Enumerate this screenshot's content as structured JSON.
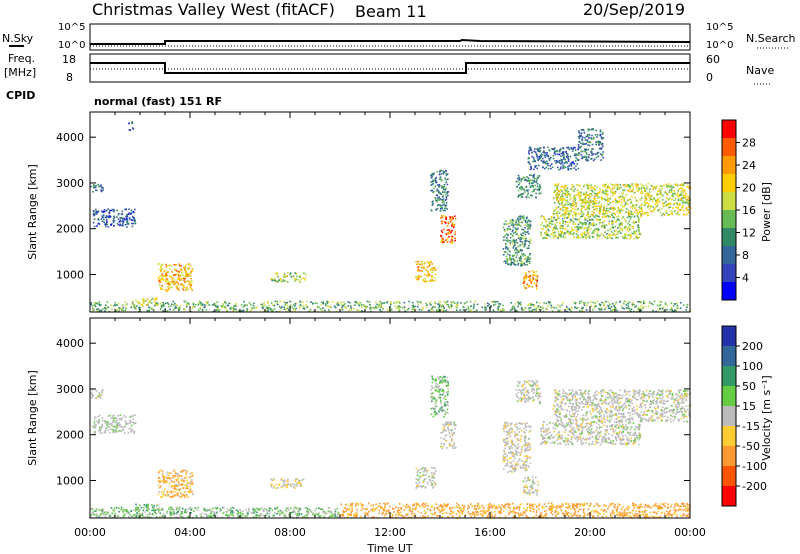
{
  "header": {
    "station": "Christmas Valley West (fitACF)",
    "beam": "Beam 11",
    "date": "20/Sep/2019"
  },
  "status_panels": {
    "nsky_label": "N.Sky",
    "nsearch_label": "N.Search",
    "noise_ticks_left": [
      "10^5",
      "10^0"
    ],
    "noise_ticks_right": [
      "10^5",
      "10^0"
    ],
    "freq_label_1": "Freq.",
    "freq_label_2": "[MHz]",
    "freq_ticks": [
      "18",
      "8"
    ],
    "nave_label": "Nave",
    "nave_ticks": [
      "60",
      "0"
    ],
    "cpid_label": "CPID",
    "cpid_text": "normal (fast) 151 RF"
  },
  "chart_data": [
    {
      "type": "heatmap",
      "quantity": "power",
      "ylabel": "Slant Range [km]",
      "colorbar_label": "Power [dB]",
      "colorbar_ticks": [
        "28",
        "24",
        "20",
        "16",
        "12",
        "8",
        "4"
      ],
      "colorbar_colors": [
        "#ff0000",
        "#ff5a00",
        "#ff9a00",
        "#ffcc00",
        "#ccdd44",
        "#66bb55",
        "#338866",
        "#336699",
        "#3344bb",
        "#0000ff"
      ],
      "y_ticks": [
        1000,
        2000,
        3000,
        4000
      ],
      "ylim": [
        180,
        4550
      ],
      "x_ticks": [
        "00:00",
        "04:00",
        "08:00",
        "12:00",
        "16:00",
        "20:00",
        "00:00"
      ],
      "xlim_hours": [
        0,
        24
      ],
      "regions": [
        {
          "t0": 0.0,
          "t1": 0.5,
          "r0": 2800,
          "r1": 3000,
          "power": 9
        },
        {
          "t0": 0.1,
          "t1": 1.8,
          "r0": 2050,
          "r1": 2450,
          "power": 7
        },
        {
          "t0": 1.5,
          "t1": 1.7,
          "r0": 4150,
          "r1": 4350,
          "power": 6
        },
        {
          "t0": 1.8,
          "t1": 2.7,
          "r0": 350,
          "r1": 500,
          "power": 18
        },
        {
          "t0": 2.7,
          "t1": 4.1,
          "r0": 650,
          "r1": 1250,
          "power": 22
        },
        {
          "t0": 7.2,
          "t1": 8.6,
          "r0": 850,
          "r1": 1050,
          "power": 16
        },
        {
          "t0": 13.0,
          "t1": 13.8,
          "r0": 850,
          "r1": 1300,
          "power": 22
        },
        {
          "t0": 13.6,
          "t1": 14.3,
          "r0": 2400,
          "r1": 3300,
          "power": 10
        },
        {
          "t0": 14.0,
          "t1": 14.6,
          "r0": 1700,
          "r1": 2300,
          "power": 26
        },
        {
          "t0": 16.5,
          "t1": 17.6,
          "r0": 1200,
          "r1": 2300,
          "power": 12
        },
        {
          "t0": 17.3,
          "t1": 17.9,
          "r0": 700,
          "r1": 1100,
          "power": 24
        },
        {
          "t0": 17.0,
          "t1": 18.0,
          "r0": 2700,
          "r1": 3200,
          "power": 11
        },
        {
          "t0": 17.5,
          "t1": 19.5,
          "r0": 3300,
          "r1": 3800,
          "power": 8
        },
        {
          "t0": 18.5,
          "t1": 24.0,
          "r0": 2300,
          "r1": 3000,
          "power": 18
        },
        {
          "t0": 18.0,
          "t1": 22.0,
          "r0": 1800,
          "r1": 2300,
          "power": 16
        },
        {
          "t0": 19.5,
          "t1": 20.5,
          "r0": 3500,
          "r1": 4200,
          "power": 9
        },
        {
          "t0": 0.0,
          "t1": 24.0,
          "r0": 200,
          "r1": 430,
          "power": 14
        }
      ]
    },
    {
      "type": "heatmap",
      "quantity": "velocity",
      "ylabel": "Slant Range [km]",
      "xlabel": "Time UT",
      "colorbar_label": "Velocity [m s⁻¹]",
      "colorbar_ticks": [
        "200",
        "100",
        "50",
        "15",
        "-15",
        "-50",
        "-100",
        "-200"
      ],
      "colorbar_colors": [
        "#2233aa",
        "#336699",
        "#339966",
        "#66cc44",
        "#bbbbbb",
        "#ffcc33",
        "#ff9933",
        "#ff5500",
        "#ff0000"
      ],
      "y_ticks": [
        1000,
        2000,
        3000,
        4000
      ],
      "ylim": [
        180,
        4550
      ],
      "x_ticks": [
        "00:00",
        "04:00",
        "08:00",
        "12:00",
        "16:00",
        "20:00",
        "00:00"
      ],
      "xlim_hours": [
        0,
        24
      ],
      "regions": [
        {
          "t0": 0.0,
          "t1": 0.5,
          "r0": 2800,
          "r1": 3000,
          "vel": 0
        },
        {
          "t0": 0.1,
          "t1": 1.8,
          "r0": 2050,
          "r1": 2450,
          "vel": 5
        },
        {
          "t0": 1.8,
          "t1": 2.7,
          "r0": 350,
          "r1": 500,
          "vel": 30
        },
        {
          "t0": 2.7,
          "t1": 4.1,
          "r0": 650,
          "r1": 1250,
          "vel": -30
        },
        {
          "t0": 7.2,
          "t1": 8.6,
          "r0": 850,
          "r1": 1050,
          "vel": -10
        },
        {
          "t0": 13.0,
          "t1": 13.8,
          "r0": 850,
          "r1": 1300,
          "vel": 0
        },
        {
          "t0": 13.6,
          "t1": 14.3,
          "r0": 2400,
          "r1": 3300,
          "vel": 20
        },
        {
          "t0": 14.0,
          "t1": 14.6,
          "r0": 1700,
          "r1": 2300,
          "vel": 0
        },
        {
          "t0": 16.5,
          "t1": 17.6,
          "r0": 1200,
          "r1": 2300,
          "vel": -5
        },
        {
          "t0": 17.3,
          "t1": 17.9,
          "r0": 700,
          "r1": 1100,
          "vel": 0
        },
        {
          "t0": 17.0,
          "t1": 18.0,
          "r0": 2700,
          "r1": 3200,
          "vel": 0
        },
        {
          "t0": 18.5,
          "t1": 24.0,
          "r0": 2300,
          "r1": 3000,
          "vel": 0
        },
        {
          "t0": 18.0,
          "t1": 22.0,
          "r0": 1800,
          "r1": 2300,
          "vel": 0
        },
        {
          "t0": 0.0,
          "t1": 10.0,
          "r0": 200,
          "r1": 430,
          "vel": 20
        },
        {
          "t0": 10.0,
          "t1": 24.0,
          "r0": 200,
          "r1": 520,
          "vel": -40
        }
      ]
    }
  ]
}
